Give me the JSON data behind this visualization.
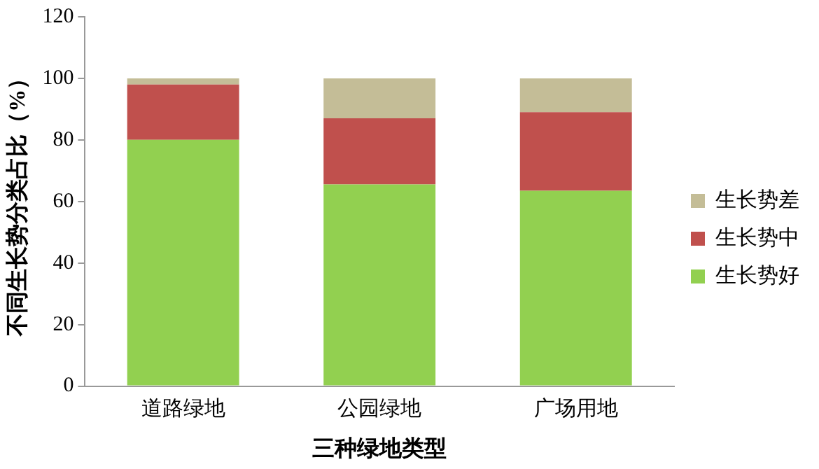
{
  "chart_data": {
    "type": "bar",
    "stacked": true,
    "xlabel": "三种绿地类型",
    "ylabel": "不同生长势分类占比（%）",
    "categories": [
      "道路绿地",
      "公园绿地",
      "广场用地"
    ],
    "series": [
      {
        "name": "生长势好",
        "color": "#92d050",
        "values": [
          80,
          65.5,
          63.5
        ]
      },
      {
        "name": "生长势中",
        "color": "#c0504d",
        "values": [
          18,
          21.5,
          25.5
        ]
      },
      {
        "name": "生长势差",
        "color": "#c4bd97",
        "values": [
          2,
          13,
          11
        ]
      }
    ],
    "ylim": [
      0,
      120
    ],
    "yticks": [
      0,
      20,
      40,
      60,
      80,
      100,
      120
    ],
    "grid": false,
    "legend": "right"
  }
}
